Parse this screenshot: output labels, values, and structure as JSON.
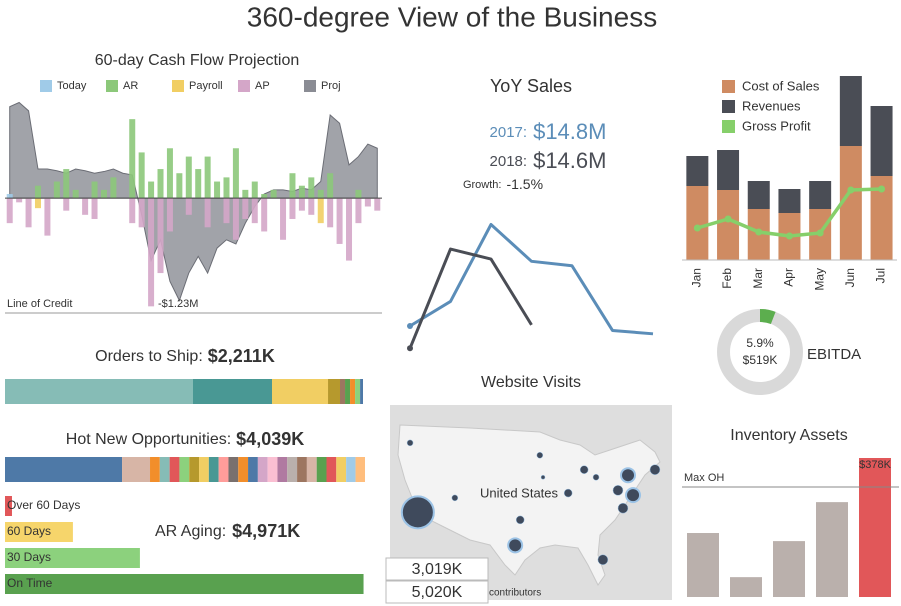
{
  "title": "360-degree View of the Business",
  "chart_data": [
    {
      "type": "bar",
      "title": "60-day Cash Flow Projection",
      "ylim": [
        -1.38,
        1.18
      ],
      "annotations": [
        "Line of Credit",
        "-$1.23M"
      ],
      "series": [
        {
          "name": "Today",
          "color": "#a0cbe8",
          "values": [
            0.05,
            null,
            null,
            null,
            null,
            null,
            null,
            null,
            null,
            null,
            null,
            null,
            null,
            null,
            null,
            null,
            null,
            null,
            null,
            null,
            null,
            null,
            null,
            null,
            null,
            null,
            null,
            null,
            null,
            null,
            null,
            null,
            null,
            null,
            null,
            null,
            null,
            null,
            null,
            null
          ]
        },
        {
          "name": "AR",
          "color": "#8cc87a",
          "values": [
            null,
            null,
            null,
            0.15,
            null,
            0.2,
            0.35,
            0.1,
            null,
            0.2,
            0.1,
            0.25,
            null,
            0.95,
            0.55,
            0.2,
            0.35,
            0.6,
            0.3,
            0.5,
            0.35,
            0.5,
            0.2,
            0.25,
            0.6,
            0.1,
            0.2,
            0.05,
            0.1,
            null,
            0.3,
            0.15,
            0.25,
            0.1,
            0.3,
            null,
            null,
            0.1,
            null,
            null
          ]
        },
        {
          "name": "Payroll",
          "color": "#f1ce63",
          "values": [
            null,
            null,
            null,
            -0.12,
            null,
            null,
            null,
            null,
            null,
            null,
            null,
            null,
            null,
            null,
            null,
            null,
            null,
            null,
            null,
            null,
            null,
            null,
            null,
            null,
            null,
            null,
            null,
            null,
            null,
            null,
            null,
            null,
            null,
            -0.3,
            null,
            null,
            null,
            null,
            null,
            null
          ]
        },
        {
          "name": "AP",
          "color": "#d4a6c8",
          "values": [
            -0.3,
            -0.05,
            -0.35,
            null,
            -0.45,
            null,
            -0.15,
            null,
            -0.2,
            -0.25,
            null,
            null,
            null,
            -0.3,
            -0.35,
            -1.3,
            -0.9,
            -0.4,
            null,
            -0.2,
            null,
            -0.35,
            null,
            -0.3,
            -0.5,
            -0.25,
            -0.3,
            -0.4,
            null,
            -0.5,
            -0.25,
            -0.15,
            -0.2,
            null,
            -0.35,
            -0.55,
            -0.75,
            -0.3,
            -0.1,
            -0.15
          ]
        },
        {
          "name": "Proj",
          "type": "area",
          "color": "#8a8c94",
          "values": [
            1.1,
            1.15,
            1.05,
            0.35,
            0.35,
            0.33,
            0.3,
            0.35,
            0.33,
            0.3,
            0.32,
            0.35,
            0.3,
            0.28,
            -0.2,
            -0.75,
            -0.5,
            -1.0,
            -1.23,
            -0.9,
            -0.7,
            -0.9,
            -0.6,
            -0.5,
            -0.55,
            -0.3,
            -0.1,
            0.05,
            0.1,
            0.1,
            0.08,
            0.12,
            0.1,
            0.2,
            1.0,
            0.9,
            0.4,
            0.5,
            0.65,
            0.6
          ]
        }
      ]
    },
    {
      "type": "line",
      "title": "YoY Sales",
      "ylim": [
        1.5,
        2.8
      ],
      "kpis": [
        {
          "label": "2017:",
          "value": "$14.8M",
          "color": "#5b8db8"
        },
        {
          "label": "2018:",
          "value": "$14.6M",
          "color": "#4a4d55"
        }
      ],
      "growth": {
        "label": "Growth:",
        "value": "-1.5%"
      },
      "categories": [
        null,
        null,
        null,
        null,
        null,
        null,
        null
      ],
      "series": [
        {
          "color": "#5b8db8",
          "values": [
            1.76,
            1.98,
            2.67,
            2.34,
            2.3,
            1.72,
            1.69
          ]
        },
        {
          "color": "#4a4d55",
          "values": [
            1.56,
            2.45,
            2.36,
            1.77,
            null,
            null,
            null
          ]
        }
      ]
    },
    {
      "type": "bar",
      "stacked": true,
      "ylim": [
        0,
        1.84
      ],
      "categories": [
        "Jan",
        "Feb",
        "Mar",
        "Apr",
        "May",
        "Jun",
        "Jul"
      ],
      "series": [
        {
          "name": "Cost of Sales",
          "color": "#cf8b62",
          "values": [
            0.74,
            0.7,
            0.51,
            0.47,
            0.51,
            1.14,
            0.84
          ]
        },
        {
          "name": "Revenues",
          "color": "#4a4d55",
          "values": [
            0.3,
            0.4,
            0.28,
            0.24,
            0.28,
            0.7,
            0.7
          ]
        },
        {
          "name": "Gross Profit",
          "type": "line",
          "color": "#86cf6a",
          "values": [
            0.32,
            0.41,
            0.28,
            0.24,
            0.27,
            0.7,
            0.71
          ]
        }
      ]
    },
    {
      "type": "donut",
      "values": [
        5.9
      ],
      "value_labels": [
        "5.9%"
      ],
      "amount": "$519K",
      "label": "EBITDA",
      "color": "#5cae4e",
      "track_color": "#d9d9d9"
    },
    {
      "type": "stacked-bar",
      "title": "Orders to Ship:",
      "total": "$2,211K",
      "values": [
        1161,
        488,
        346,
        74,
        31,
        31,
        31,
        31,
        18
      ],
      "colors": [
        "#86bcb6",
        "#499894",
        "#f1ce63",
        "#b6992d",
        "#9d7660",
        "#59a14f",
        "#f28e2b",
        "#8cd17d",
        "#4e79a7"
      ]
    },
    {
      "type": "stacked-bar",
      "title": "Hot New Opportunities:",
      "total": "$4,039K",
      "values": [
        1313,
        314,
        110,
        110,
        110,
        110,
        110,
        110,
        110,
        110,
        110,
        110,
        110,
        110,
        110,
        110,
        110,
        110,
        110,
        110,
        110,
        110,
        106,
        106
      ],
      "colors": [
        "#4e79a7",
        "#d7b5a6",
        "#f28e2b",
        "#86bcb6",
        "#e15759",
        "#8cd17d",
        "#b6992d",
        "#f1ce63",
        "#499894",
        "#ff9d9a",
        "#79706e",
        "#f28e2b",
        "#4e79a7",
        "#d4a6c8",
        "#fabfd2",
        "#b07aa1",
        "#bab0ac",
        "#9d7660",
        "#d7b5a6",
        "#59a14f",
        "#e15759",
        "#f1ce63",
        "#a0cbe8",
        "#ffbe7d"
      ]
    },
    {
      "type": "hbar",
      "title": "AR Aging:",
      "total": "$4,971K",
      "xlim": [
        0,
        3140
      ],
      "categories": [
        "Over 60 Days",
        "60 Days",
        "30 Days",
        "On Time"
      ],
      "values": [
        61,
        594,
        1180,
        3136
      ],
      "colors": [
        "#e15759",
        "#f6d56b",
        "#8cd17d",
        "#59a14f"
      ]
    },
    {
      "type": "map",
      "title": "Website Visits",
      "map_label": "United States",
      "kpis": [
        {
          "value": "3,019K",
          "color": "#5b9bd5"
        },
        {
          "value": "5,020K",
          "color": "#333333"
        }
      ],
      "attribution": "contributors",
      "xlim": [
        -125,
        -67
      ],
      "ylim": [
        25,
        49
      ],
      "color": "#3f4a5c",
      "x": [
        -120.0,
        -121.7,
        -111.9,
        -93.3,
        -92.6,
        -83.6,
        -74.0,
        -76.2,
        -72.9,
        -75.1,
        -98.7,
        -79.5,
        -87.1,
        -97.6,
        -68.1,
        -81.0
      ],
      "values": [
        36.3,
        46.4,
        38.4,
        44.6,
        41.4,
        42.5,
        41.7,
        39.5,
        38.8,
        36.9,
        31.5,
        29.4,
        39.1,
        35.2,
        42.5,
        41.4
      ],
      "sizes": [
        16,
        3,
        3,
        3,
        2,
        4,
        7,
        5,
        7,
        5,
        7,
        5,
        4,
        4,
        5,
        3
      ]
    },
    {
      "type": "bar",
      "title": "Inventory Assets",
      "ylim": [
        0,
        378
      ],
      "values": [
        174,
        54,
        152,
        258,
        378
      ],
      "value_labels": [
        null,
        null,
        null,
        null,
        "$378K"
      ],
      "colors": [
        "#bab0ac",
        "#bab0ac",
        "#bab0ac",
        "#bab0ac",
        "#e15759"
      ],
      "reference": {
        "label": "Max OH",
        "value": 299
      }
    }
  ]
}
